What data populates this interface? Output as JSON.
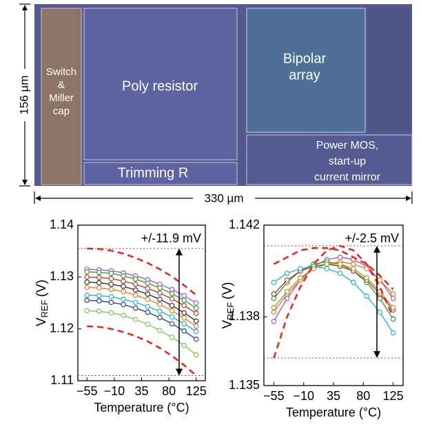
{
  "die_photo": {
    "blocks": {
      "switch": [
        "Switch",
        "&",
        "Miller",
        "cap"
      ],
      "poly": "Poly resistor",
      "trimming": "Trimming R",
      "bipolar": [
        "Bipolar",
        "array"
      ],
      "power": [
        "Power MOS,",
        "start-up",
        "current mirror"
      ]
    },
    "height_label": "156 µm",
    "width_label": "330 µm"
  },
  "chart_data": [
    {
      "type": "line",
      "annotation": "+/-11.9 mV",
      "ylabel": {
        "main": "V",
        "sub": "REF",
        "unit": "(V)"
      },
      "xlabel": "Temperature (°C)",
      "x": [
        -55,
        -35,
        -15,
        5,
        25,
        45,
        65,
        85,
        105,
        125
      ],
      "xlim": [
        -70,
        140
      ],
      "xticks": [
        {
          "value": -55,
          "label": "−55"
        },
        {
          "value": -10,
          "label": "−10"
        },
        35,
        80,
        125
      ],
      "ylim": [
        1.11,
        1.14
      ],
      "yticks": [
        1.11,
        1.12,
        1.13,
        1.14
      ],
      "series": [
        {
          "color": "#9b59d0",
          "values": [
            1.1315,
            1.1314,
            1.1312,
            1.1308,
            1.1302,
            1.1295,
            1.1286,
            1.1276,
            1.1264,
            1.125
          ]
        },
        {
          "color": "#3a9a3a",
          "values": [
            1.131,
            1.1309,
            1.1307,
            1.1302,
            1.1296,
            1.1288,
            1.1279,
            1.1268,
            1.1255,
            1.124
          ]
        },
        {
          "color": "#c0392b",
          "values": [
            1.13,
            1.1299,
            1.1297,
            1.1292,
            1.1286,
            1.1278,
            1.1269,
            1.1258,
            1.1245,
            1.123
          ]
        },
        {
          "color": "#333333",
          "values": [
            1.129,
            1.1289,
            1.1286,
            1.1282,
            1.1275,
            1.1267,
            1.1257,
            1.1245,
            1.1231,
            1.1215
          ]
        },
        {
          "color": "#e67e22",
          "values": [
            1.128,
            1.1279,
            1.1276,
            1.1272,
            1.1265,
            1.1257,
            1.1247,
            1.1235,
            1.1221,
            1.1205
          ]
        },
        {
          "color": "#1fb5c9",
          "values": [
            1.1265,
            1.1264,
            1.1262,
            1.1257,
            1.1251,
            1.1243,
            1.1234,
            1.1223,
            1.121,
            1.1195
          ]
        },
        {
          "color": "#2c3e9e",
          "values": [
            1.1255,
            1.1254,
            1.1251,
            1.1247,
            1.124,
            1.1232,
            1.1222,
            1.121,
            1.1196,
            1.118
          ]
        },
        {
          "color": "#7dc85a",
          "values": [
            1.1235,
            1.1234,
            1.1231,
            1.1226,
            1.1218,
            1.1209,
            1.1197,
            1.1184,
            1.1168,
            1.115
          ]
        },
        {
          "color": "#e8281e",
          "dashed": true,
          "values": [
            1.1355,
            1.1354,
            1.1351,
            1.1345,
            1.1337,
            1.1327,
            1.1315,
            1.1301,
            1.1284,
            1.1265
          ]
        },
        {
          "color": "#e8281e",
          "dashed": true,
          "values": [
            1.1205,
            1.1204,
            1.12,
            1.1194,
            1.1186,
            1.1176,
            1.1163,
            1.1148,
            1.113,
            1.111
          ]
        }
      ]
    },
    {
      "type": "line",
      "annotation": "+/-2.5 mV",
      "ylabel": {
        "main": "V",
        "sub": "REF",
        "unit": "(V)"
      },
      "xlabel": "Temperature (°C)",
      "x": [
        -55,
        -35,
        -15,
        5,
        25,
        45,
        65,
        85,
        105,
        125
      ],
      "xlim": [
        -70,
        140
      ],
      "xticks": [
        {
          "value": -55,
          "label": "−55"
        },
        {
          "value": -10,
          "label": "−10"
        },
        35,
        80,
        125
      ],
      "ylim": [
        1.135,
        1.142
      ],
      "yticks": [
        1.135,
        1.138,
        1.142
      ],
      "series": [
        {
          "color": "#9b59d0",
          "values": [
            1.1378,
            1.1388,
            1.1396,
            1.1402,
            1.1405,
            1.1406,
            1.1405,
            1.1402,
            1.1396,
            1.1388
          ]
        },
        {
          "color": "#3a9a3a",
          "values": [
            1.1388,
            1.1395,
            1.14,
            1.1403,
            1.1404,
            1.1403,
            1.14,
            1.1395,
            1.1388,
            1.1379
          ]
        },
        {
          "color": "#c0392b",
          "values": [
            1.139,
            1.1396,
            1.14,
            1.1402,
            1.1403,
            1.1402,
            1.14,
            1.1396,
            1.139,
            1.1383
          ]
        },
        {
          "color": "#e67e22",
          "values": [
            1.1382,
            1.139,
            1.1396,
            1.1401,
            1.1403,
            1.1404,
            1.1403,
            1.1401,
            1.1396,
            1.139
          ]
        },
        {
          "color": "#1fb5c9",
          "values": [
            1.1395,
            1.1399,
            1.1401,
            1.1402,
            1.1401,
            1.1399,
            1.1395,
            1.1389,
            1.1382,
            1.1373
          ]
        },
        {
          "color": "#9aa02a",
          "values": [
            1.1384,
            1.1391,
            1.1397,
            1.1401,
            1.1403,
            1.1403,
            1.1401,
            1.1397,
            1.1391,
            1.1384
          ]
        },
        {
          "color": "#e8281e",
          "dashed": true,
          "values": [
            1.1362,
            1.138,
            1.1393,
            1.1403,
            1.1409,
            1.1411,
            1.1409,
            1.1403,
            1.1393,
            1.138
          ]
        },
        {
          "color": "#e8281e",
          "dashed": true,
          "values": [
            1.1403,
            1.1406,
            1.1409,
            1.141,
            1.141,
            1.1409,
            1.1406,
            1.1403,
            1.1398,
            1.1392
          ]
        }
      ]
    }
  ]
}
